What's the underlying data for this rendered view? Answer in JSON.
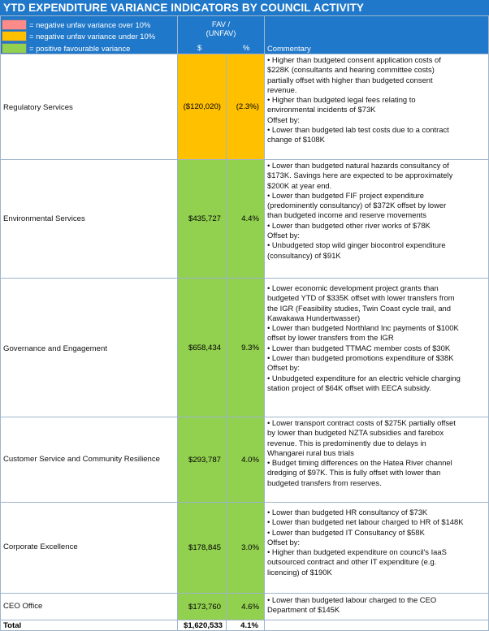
{
  "title": "YTD EXPENDITURE VARIANCE INDICATORS BY COUNCIL ACTIVITY",
  "legend": [
    {
      "color": "#ff8a8a",
      "label": "= negative unfav variance over 10%"
    },
    {
      "color": "#ffc000",
      "label": "= negative unfav variance under 10%"
    },
    {
      "color": "#92d050",
      "label": "= positive favourable variance"
    }
  ],
  "headers": {
    "fav_line1": "FAV /",
    "fav_line2": "(UNFAV)",
    "dollar": "$",
    "percent": "%",
    "commentary": "Commentary"
  },
  "rows": [
    {
      "activity": "Regulatory Services",
      "dollar": "($120,020)",
      "percent": "(2.3%)",
      "color": "#ffc000",
      "commentary": [
        "• Higher than budgeted consent application costs of",
        "$228K (consultants and hearing committee costs)",
        "partially offset with higher than budgeted consent",
        "revenue.",
        "• Higher than budgeted legal fees relating to",
        "environmental incidents of $73K",
        "Offset by:",
        "• Lower than budgeted lab test costs due to a contract",
        "change of $108K"
      ]
    },
    {
      "activity": "Environmental Services",
      "dollar": "$435,727",
      "percent": "4.4%",
      "color": "#92d050",
      "commentary": [
        "• Lower than budgeted natural hazards consultancy of",
        "$173K. Savings here are expected to be approximately",
        "$200K at year end.",
        "• Lower than budgeted FIF project expenditure",
        "(predominently consultancy) of $372K offset by lower",
        "than budgeted income and reserve movements",
        "• Lower than budgeted other river works of $78K",
        "Offset by:",
        "• Unbudgeted stop wild ginger biocontrol expenditure",
        "(consultancy) of $91K"
      ]
    },
    {
      "activity": "Governance and Engagement",
      "dollar": "$658,434",
      "percent": "9.3%",
      "color": "#92d050",
      "commentary": [
        "• Lower economic development project grants than",
        "budgeted YTD of $335K offset with lower transfers from",
        "the IGR (Feasibility studies, Twin Coast cycle trail, and",
        "Kawakawa Hundertwasser)",
        "• Lower than budgeted Northland Inc payments of $100K",
        "offset by lower transfers from the IGR",
        "• Lower than budgeted TTMAC member costs of $30K",
        "• Lower than budgeted promotions expenditure of $38K",
        "Offset by:",
        "• Unbudgeted expenditure for an electric vehicle charging",
        "station project of $64K offset with EECA subsidy."
      ]
    },
    {
      "activity": "Customer Service and Community Resilience",
      "dollar": "$293,787",
      "percent": "4.0%",
      "color": "#92d050",
      "commentary": [
        "• Lower transport contract costs of $275K partially offset",
        "by lower than budgeted NZTA subsidies and farebox",
        "revenue. This is predominently due to delays in",
        "Whangarei rural bus trials",
        "• Budget timing differences on the Hatea River channel",
        "dredging of $97K. This is fully offset with lower than",
        "budgeted transfers from reserves."
      ]
    },
    {
      "activity": "Corporate Excellence",
      "dollar": "$178,845",
      "percent": "3.0%",
      "color": "#92d050",
      "commentary": [
        "• Lower than budgeted HR consultancy of $73K",
        "• Lower than budgeted net labour charged to HR of $148K",
        "• Lower than budgeted IT Consultancy of $58K",
        "Offset by:",
        "• Higher than budgeted expenditure on council's IaaS",
        "outsourced contract and other IT expenditure (e.g.",
        "licencing) of $190K"
      ]
    },
    {
      "activity": "CEO Office",
      "dollar": "$173,760",
      "percent": "4.6%",
      "color": "#92d050",
      "commentary": [
        "• Lower than budgeted labour charged to the CEO",
        "Department of $145K"
      ]
    }
  ],
  "total": {
    "label": "Total",
    "dollar": "$1,620,533",
    "percent": "4.1%"
  }
}
